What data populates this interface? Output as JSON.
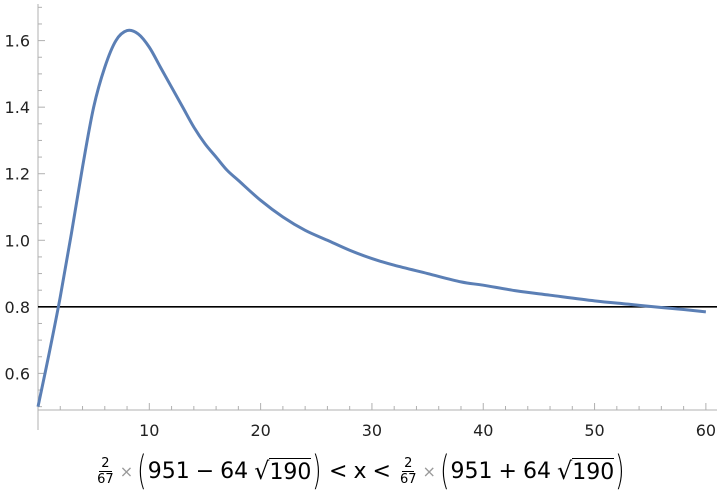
{
  "chart_data": {
    "type": "line",
    "title": "",
    "xlabel": "",
    "ylabel": "",
    "xlim": [
      0,
      61
    ],
    "ylim": [
      0.49,
      1.71
    ],
    "x_ticks": [
      10,
      20,
      30,
      40,
      50,
      60
    ],
    "y_ticks": [
      0.6,
      0.8,
      1.0,
      1.2,
      1.4,
      1.6
    ],
    "x_tick_labels": [
      "10",
      "20",
      "30",
      "40",
      "50",
      "60"
    ],
    "y_tick_labels": [
      "0.6",
      "0.8",
      "1.0",
      "1.2",
      "1.4",
      "1.6"
    ],
    "grid": false,
    "series": [
      {
        "color": "#5b7fb5",
        "x": [
          0,
          1,
          2,
          3,
          4,
          5,
          6,
          7,
          8,
          9,
          10,
          11,
          12,
          13,
          14,
          15,
          16,
          17,
          18,
          20,
          22,
          24,
          26,
          28,
          30,
          32,
          35,
          38,
          40,
          43,
          46,
          50,
          53,
          56,
          58,
          60
        ],
        "y": [
          0.5,
          0.66,
          0.83,
          1.02,
          1.22,
          1.4,
          1.52,
          1.6,
          1.63,
          1.62,
          1.58,
          1.52,
          1.46,
          1.4,
          1.34,
          1.29,
          1.25,
          1.21,
          1.18,
          1.12,
          1.07,
          1.03,
          1.0,
          0.97,
          0.945,
          0.925,
          0.9,
          0.875,
          0.865,
          0.848,
          0.835,
          0.818,
          0.808,
          0.798,
          0.792,
          0.785
        ]
      }
    ],
    "reference_lines": [
      {
        "orientation": "horizontal",
        "y": 0.8,
        "color": "#000000"
      }
    ]
  },
  "caption": {
    "left_frac_num": "2",
    "left_frac_den": "67",
    "times": "×",
    "open_paren": "(",
    "close_paren": ")",
    "left_a": "951",
    "left_op": "−",
    "left_b": "64",
    "radical": "√",
    "radicand": "190",
    "lt1": "<",
    "var": "x",
    "lt2": "<",
    "right_frac_num": "2",
    "right_frac_den": "67",
    "right_a": "951",
    "right_op": "+",
    "right_b": "64"
  }
}
